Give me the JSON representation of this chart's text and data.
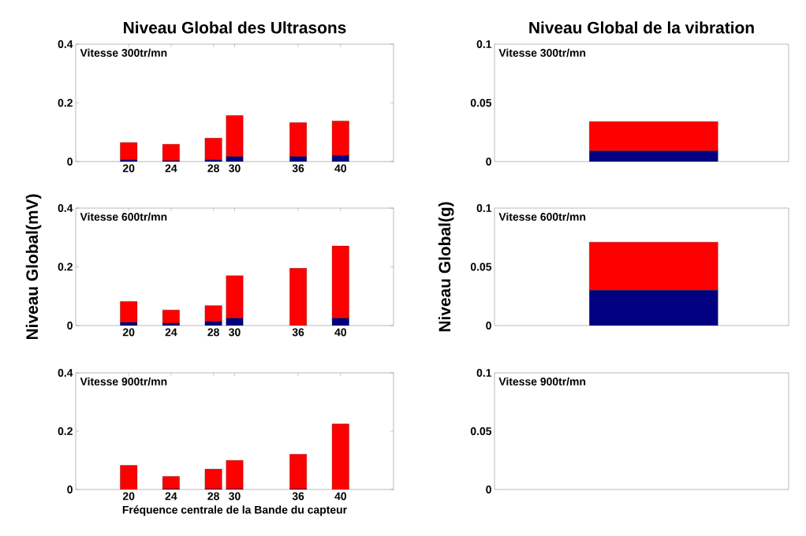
{
  "chart_data": [
    {
      "type": "bar",
      "stacked": true,
      "title": "Niveau Global des Ultrasons",
      "annotations": [
        "Vitesse 300tr/mn"
      ],
      "x": [
        20,
        24,
        28,
        30,
        36,
        40
      ],
      "xlim": [
        15,
        45
      ],
      "xticks": [
        20,
        24,
        28,
        30,
        36,
        40
      ],
      "ylim": [
        0,
        0.4
      ],
      "yticks": [
        0,
        0.2,
        0.4
      ],
      "series": [
        {
          "color": "#000080",
          "values": [
            0.006,
            0.003,
            0.006,
            0.017,
            0.017,
            0.021
          ]
        },
        {
          "color": "#ff0000",
          "values": [
            0.059,
            0.056,
            0.074,
            0.14,
            0.116,
            0.117
          ]
        }
      ]
    },
    {
      "type": "bar",
      "stacked": true,
      "title": "Niveau Global de la vibration",
      "annotations": [
        "Vitesse 300tr/mn"
      ],
      "categories": [
        null
      ],
      "ylim": [
        0,
        0.1
      ],
      "yticks": [
        0,
        0.05,
        0.1
      ],
      "tick_labels": "y",
      "series": [
        {
          "color": "#000080",
          "values": [
            0.009
          ]
        },
        {
          "color": "#ff0000",
          "values": [
            0.025
          ]
        }
      ]
    },
    {
      "type": "bar",
      "stacked": true,
      "ylabel": "Niveau Global(mV)",
      "annotations": [
        "Vitesse 600tr/mn"
      ],
      "x": [
        20,
        24,
        28,
        30,
        36,
        40
      ],
      "xlim": [
        15,
        45
      ],
      "xticks": [
        20,
        24,
        28,
        30,
        36,
        40
      ],
      "ylim": [
        0,
        0.4
      ],
      "yticks": [
        0,
        0.2,
        0.4
      ],
      "series": [
        {
          "color": "#000080",
          "values": [
            0.011,
            0.008,
            0.014,
            0.025,
            0,
            0.025
          ]
        },
        {
          "color": "#ff0000",
          "values": [
            0.071,
            0.045,
            0.054,
            0.145,
            0.195,
            0.246
          ]
        }
      ]
    },
    {
      "type": "bar",
      "stacked": true,
      "ylabel": "Niveau Global(g)",
      "annotations": [
        "Vitesse 600tr/mn"
      ],
      "categories": [
        null
      ],
      "ylim": [
        0,
        0.1
      ],
      "yticks": [
        0,
        0.05,
        0.1
      ],
      "tick_labels": "y",
      "series": [
        {
          "color": "#000080",
          "values": [
            0.03
          ]
        },
        {
          "color": "#ff0000",
          "values": [
            0.041
          ]
        }
      ]
    },
    {
      "type": "bar",
      "stacked": true,
      "xlabel": "Fréquence centrale de la Bande du capteur",
      "annotations": [
        "Vitesse 900tr/mn"
      ],
      "x": [
        20,
        24,
        28,
        30,
        36,
        40
      ],
      "xlim": [
        15,
        45
      ],
      "xticks": [
        20,
        24,
        28,
        30,
        36,
        40
      ],
      "ylim": [
        0,
        0.4
      ],
      "yticks": [
        0,
        0.2,
        0.4
      ],
      "series": [
        {
          "color": "#000080",
          "values": [
            0,
            0.002,
            0.002,
            0.002,
            0.002,
            0
          ]
        },
        {
          "color": "#ff0000",
          "values": [
            0.083,
            0.043,
            0.068,
            0.098,
            0.119,
            0.225
          ]
        }
      ]
    },
    {
      "type": "bar",
      "stacked": true,
      "annotations": [
        "Vitesse 900tr/mn"
      ],
      "categories": [
        null
      ],
      "ylim": [
        0,
        0.1
      ],
      "yticks": [
        0,
        0.05,
        0.1
      ],
      "tick_labels": "y",
      "series": [
        {
          "color": "#000080",
          "values": [
            null
          ]
        },
        {
          "color": "#ff0000",
          "values": [
            null
          ]
        }
      ]
    }
  ]
}
